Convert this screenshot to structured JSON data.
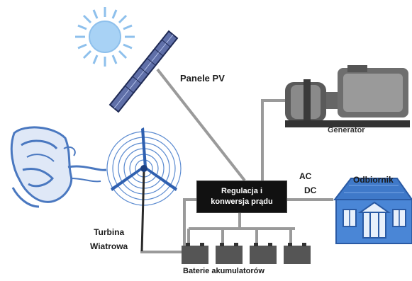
{
  "labels": {
    "panels": "Panele PV",
    "generator": "Generator",
    "ac": "AC",
    "dc": "DC",
    "load": "Odbiornik",
    "turbine_line1": "Turbina",
    "turbine_line2": "Wiatrowa",
    "batteries": "Baterie akumulatorów",
    "controller_line1": "Regulacja i",
    "controller_line2": "konwersja prądu"
  },
  "colors": {
    "wire": "#9a9a9a",
    "sun": "#8ec0ec",
    "panel": "#5f6fa8",
    "wind_face": "#4a78c0",
    "turbine": "#2f60b0",
    "house": "#3f79c9",
    "generator": "#444444",
    "controller": "#111111",
    "battery": "#555555"
  }
}
